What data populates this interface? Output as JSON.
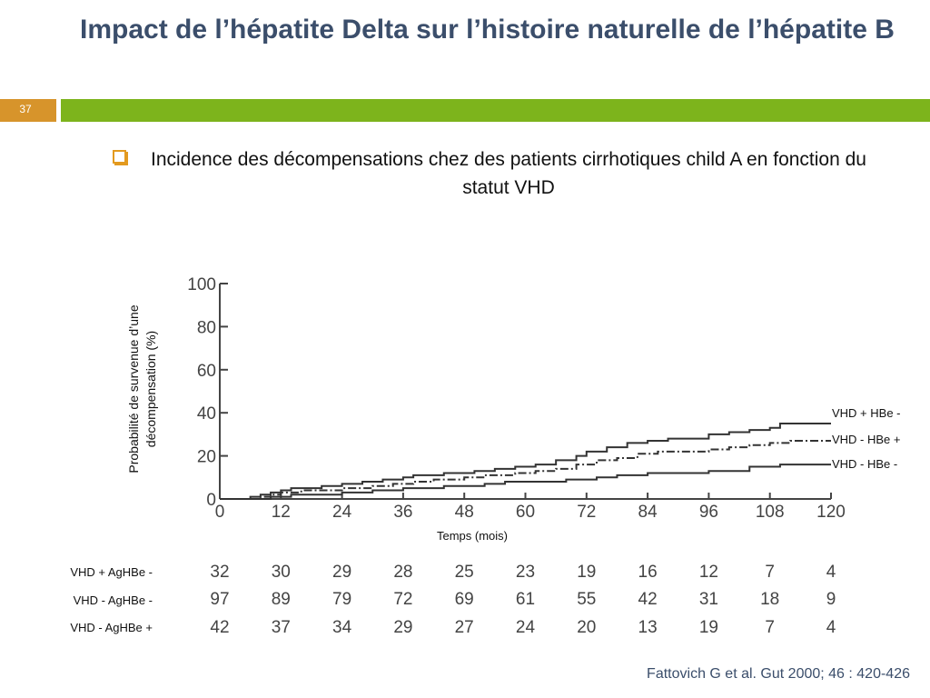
{
  "slide": {
    "title": "Impact de l’hépatite Delta sur l’histoire naturelle de l’hépatite B",
    "number": "37",
    "subtitle": "Incidence des décompensations chez des patients cirrhotiques child A en fonction du statut VHD",
    "reference": "Fattovich G et al. Gut 2000; 46 : 420-426",
    "colors": {
      "title": "#3b4e6b",
      "accent_orange": "#d7942b",
      "accent_green": "#7db41c",
      "bullet": "#e39a1f"
    },
    "bullet_icon": "square-bullet-icon"
  },
  "chart_data": {
    "type": "line",
    "ylabel": "Probabilité de survenue d’une décompensation (%)",
    "xlabel": "Temps (mois)",
    "xlim": [
      0,
      120
    ],
    "ylim": [
      0,
      100
    ],
    "x_ticks": [
      "0",
      "12",
      "24",
      "36",
      "48",
      "60",
      "72",
      "84",
      "96",
      "108",
      "120"
    ],
    "y_ticks": [
      "0",
      "20",
      "40",
      "60",
      "80",
      "100"
    ],
    "series": [
      {
        "name": "VHD + HBe -",
        "style": "solid",
        "points": [
          [
            0,
            0
          ],
          [
            4,
            0
          ],
          [
            6,
            1
          ],
          [
            8,
            2
          ],
          [
            10,
            3
          ],
          [
            12,
            4
          ],
          [
            14,
            5
          ],
          [
            18,
            5
          ],
          [
            20,
            6
          ],
          [
            24,
            7
          ],
          [
            28,
            8
          ],
          [
            32,
            9
          ],
          [
            36,
            10
          ],
          [
            38,
            11
          ],
          [
            44,
            12
          ],
          [
            50,
            13
          ],
          [
            54,
            14
          ],
          [
            58,
            15
          ],
          [
            62,
            16
          ],
          [
            66,
            18
          ],
          [
            70,
            20
          ],
          [
            72,
            22
          ],
          [
            76,
            24
          ],
          [
            80,
            26
          ],
          [
            84,
            27
          ],
          [
            88,
            28
          ],
          [
            96,
            30
          ],
          [
            100,
            31
          ],
          [
            104,
            32
          ],
          [
            108,
            33
          ],
          [
            110,
            35
          ],
          [
            120,
            35
          ]
        ]
      },
      {
        "name": "VHD - HBe +",
        "style": "dash-dot",
        "points": [
          [
            0,
            0
          ],
          [
            6,
            0
          ],
          [
            8,
            1
          ],
          [
            10,
            2
          ],
          [
            12,
            3
          ],
          [
            16,
            4
          ],
          [
            20,
            4
          ],
          [
            24,
            5
          ],
          [
            30,
            6
          ],
          [
            34,
            7
          ],
          [
            38,
            8
          ],
          [
            42,
            9
          ],
          [
            48,
            10
          ],
          [
            52,
            11
          ],
          [
            58,
            12
          ],
          [
            62,
            13
          ],
          [
            66,
            14
          ],
          [
            70,
            16
          ],
          [
            74,
            18
          ],
          [
            78,
            19
          ],
          [
            82,
            21
          ],
          [
            86,
            22
          ],
          [
            96,
            23
          ],
          [
            100,
            24
          ],
          [
            104,
            25
          ],
          [
            108,
            26
          ],
          [
            112,
            27
          ],
          [
            120,
            27
          ]
        ]
      },
      {
        "name": "VHD - HBe -",
        "style": "solid",
        "points": [
          [
            0,
            0
          ],
          [
            8,
            0
          ],
          [
            10,
            1
          ],
          [
            14,
            2
          ],
          [
            20,
            2
          ],
          [
            24,
            3
          ],
          [
            30,
            4
          ],
          [
            36,
            5
          ],
          [
            44,
            6
          ],
          [
            52,
            7
          ],
          [
            56,
            8
          ],
          [
            62,
            8
          ],
          [
            68,
            9
          ],
          [
            74,
            10
          ],
          [
            78,
            11
          ],
          [
            84,
            12
          ],
          [
            96,
            13
          ],
          [
            104,
            15
          ],
          [
            110,
            16
          ],
          [
            120,
            16
          ]
        ]
      }
    ],
    "risk_table": {
      "rows": [
        {
          "label": "VHD + AgHBe -",
          "values": [
            "32",
            "30",
            "29",
            "28",
            "25",
            "23",
            "19",
            "16",
            "12",
            "7",
            "4"
          ]
        },
        {
          "label": "VHD - AgHBe -",
          "values": [
            "97",
            "89",
            "79",
            "72",
            "69",
            "61",
            "55",
            "42",
            "31",
            "18",
            "9"
          ]
        },
        {
          "label": "VHD - AgHBe +",
          "values": [
            "42",
            "37",
            "34",
            "29",
            "27",
            "24",
            "20",
            "13",
            "19",
            "7",
            "4"
          ]
        }
      ]
    }
  }
}
